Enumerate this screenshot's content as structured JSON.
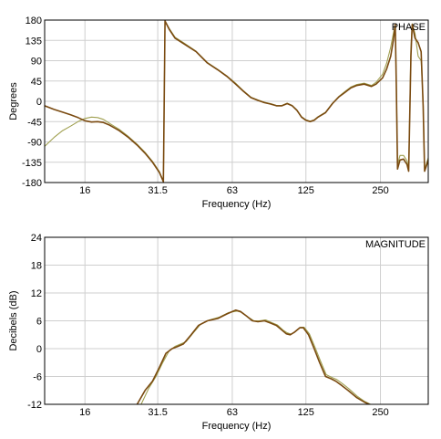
{
  "chart_data": [
    {
      "type": "line",
      "title": "PHASE",
      "xlabel": "Frequency (Hz)",
      "ylabel": "Degrees",
      "x_scale": "log",
      "xlim": [
        11,
        390
      ],
      "ylim": [
        -180,
        180
      ],
      "grid": true,
      "x_ticks": [
        16,
        31.5,
        63,
        125,
        250
      ],
      "x_tick_labels": [
        "16",
        "31.5",
        "63",
        "125",
        "250"
      ],
      "y_ticks": [
        180,
        135,
        90,
        45,
        0,
        -45,
        -90,
        -135,
        -180
      ],
      "y_tick_labels": [
        "180",
        "135",
        "90",
        "45",
        "0",
        "-45",
        "-90",
        "-135",
        "-180"
      ],
      "colors": [
        "#7a4a10",
        "#a0a050"
      ],
      "series": [
        {
          "values": [
            [
              11,
              -10
            ],
            [
              12,
              -18
            ],
            [
              13,
              -24
            ],
            [
              14,
              -30
            ],
            [
              15,
              -36
            ],
            [
              16,
              -43
            ],
            [
              17,
              -46
            ],
            [
              18,
              -45
            ],
            [
              19,
              -47
            ],
            [
              20,
              -52
            ],
            [
              22,
              -65
            ],
            [
              24,
              -80
            ],
            [
              26,
              -97
            ],
            [
              28,
              -115
            ],
            [
              30,
              -135
            ],
            [
              32,
              -158
            ],
            [
              33.2,
              -178
            ],
            [
              33.7,
              178
            ],
            [
              35,
              160
            ],
            [
              37,
              140
            ],
            [
              40,
              128
            ],
            [
              45,
              110
            ],
            [
              50,
              85
            ],
            [
              55,
              70
            ],
            [
              60,
              55
            ],
            [
              65,
              38
            ],
            [
              70,
              22
            ],
            [
              75,
              8
            ],
            [
              80,
              2
            ],
            [
              85,
              -3
            ],
            [
              90,
              -6
            ],
            [
              95,
              -10
            ],
            [
              100,
              -10
            ],
            [
              105,
              -5
            ],
            [
              110,
              -10
            ],
            [
              115,
              -20
            ],
            [
              120,
              -35
            ],
            [
              125,
              -42
            ],
            [
              130,
              -45
            ],
            [
              135,
              -42
            ],
            [
              140,
              -35
            ],
            [
              150,
              -25
            ],
            [
              160,
              -5
            ],
            [
              170,
              10
            ],
            [
              180,
              20
            ],
            [
              190,
              30
            ],
            [
              200,
              35
            ],
            [
              215,
              38
            ],
            [
              230,
              33
            ],
            [
              240,
              38
            ],
            [
              255,
              52
            ],
            [
              265,
              72
            ],
            [
              275,
              100
            ],
            [
              282,
              135
            ],
            [
              287,
              170
            ],
            [
              290,
              30
            ],
            [
              293,
              -150
            ],
            [
              300,
              -130
            ],
            [
              310,
              -128
            ],
            [
              320,
              -140
            ],
            [
              325,
              -155
            ],
            [
              332,
              100
            ],
            [
              336,
              170
            ],
            [
              345,
              140
            ],
            [
              355,
              130
            ],
            [
              365,
              110
            ],
            [
              372,
              -10
            ],
            [
              377,
              -155
            ],
            [
              385,
              -140
            ],
            [
              390,
              -130
            ]
          ]
        },
        {
          "values": [
            [
              11,
              -100
            ],
            [
              12,
              -80
            ],
            [
              13,
              -65
            ],
            [
              14,
              -55
            ],
            [
              15,
              -45
            ],
            [
              16,
              -38
            ],
            [
              17,
              -35
            ],
            [
              18,
              -36
            ],
            [
              19,
              -40
            ],
            [
              20,
              -48
            ],
            [
              22,
              -62
            ],
            [
              24,
              -78
            ],
            [
              26,
              -95
            ],
            [
              28,
              -113
            ],
            [
              30,
              -133
            ],
            [
              32,
              -156
            ],
            [
              33.2,
              -178
            ],
            [
              33.7,
              178
            ],
            [
              35,
              162
            ],
            [
              37,
              142
            ],
            [
              40,
              130
            ],
            [
              45,
              111
            ],
            [
              50,
              86
            ],
            [
              55,
              71
            ],
            [
              60,
              56
            ],
            [
              65,
              40
            ],
            [
              70,
              23
            ],
            [
              75,
              9
            ],
            [
              80,
              3
            ],
            [
              85,
              -2
            ],
            [
              90,
              -5
            ],
            [
              95,
              -9
            ],
            [
              100,
              -9
            ],
            [
              105,
              -4
            ],
            [
              110,
              -9
            ],
            [
              115,
              -19
            ],
            [
              120,
              -34
            ],
            [
              125,
              -41
            ],
            [
              130,
              -44
            ],
            [
              135,
              -41
            ],
            [
              140,
              -34
            ],
            [
              150,
              -24
            ],
            [
              160,
              -4
            ],
            [
              170,
              11
            ],
            [
              180,
              22
            ],
            [
              190,
              32
            ],
            [
              200,
              37
            ],
            [
              215,
              40
            ],
            [
              230,
              35
            ],
            [
              240,
              42
            ],
            [
              255,
              60
            ],
            [
              265,
              85
            ],
            [
              275,
              120
            ],
            [
              282,
              150
            ],
            [
              287,
              172
            ],
            [
              290,
              40
            ],
            [
              293,
              -140
            ],
            [
              300,
              -120
            ],
            [
              310,
              -120
            ],
            [
              320,
              -132
            ],
            [
              325,
              -150
            ],
            [
              332,
              120
            ],
            [
              336,
              172
            ],
            [
              345,
              150
            ],
            [
              355,
              100
            ],
            [
              365,
              90
            ],
            [
              372,
              0
            ],
            [
              377,
              -150
            ],
            [
              385,
              -135
            ],
            [
              390,
              -125
            ]
          ]
        }
      ]
    },
    {
      "type": "line",
      "title": "MAGNITUDE",
      "xlabel": "Frequency (Hz)",
      "ylabel": "Decibels (dB)",
      "x_scale": "log",
      "xlim": [
        11,
        390
      ],
      "ylim": [
        -12,
        24
      ],
      "grid": true,
      "x_ticks": [
        16,
        31.5,
        63,
        125,
        250
      ],
      "x_tick_labels": [
        "16",
        "31.5",
        "63",
        "125",
        "250"
      ],
      "y_ticks": [
        24,
        18,
        12,
        6,
        0,
        -6,
        -12
      ],
      "y_tick_labels": [
        "24",
        "18",
        "12",
        "6",
        "0",
        "-6",
        "-12"
      ],
      "colors": [
        "#7a4a10",
        "#a0a050"
      ],
      "series": [
        {
          "values": [
            [
              26,
              -12
            ],
            [
              28,
              -9
            ],
            [
              30,
              -7
            ],
            [
              32,
              -4
            ],
            [
              34,
              -1
            ],
            [
              36,
              0
            ],
            [
              38,
              0.5
            ],
            [
              40,
              1
            ],
            [
              43,
              3
            ],
            [
              46,
              5
            ],
            [
              50,
              6
            ],
            [
              55,
              6.5
            ],
            [
              60,
              7.5
            ],
            [
              65,
              8.3
            ],
            [
              68,
              8
            ],
            [
              72,
              7
            ],
            [
              76,
              6
            ],
            [
              80,
              5.8
            ],
            [
              85,
              6
            ],
            [
              90,
              5.5
            ],
            [
              95,
              5
            ],
            [
              100,
              4
            ],
            [
              104,
              3.2
            ],
            [
              108,
              3
            ],
            [
              112,
              3.5
            ],
            [
              118,
              4.5
            ],
            [
              122,
              4.5
            ],
            [
              128,
              3
            ],
            [
              135,
              0
            ],
            [
              142,
              -3
            ],
            [
              150,
              -6
            ],
            [
              158,
              -6.5
            ],
            [
              165,
              -7
            ],
            [
              175,
              -8
            ],
            [
              185,
              -9
            ],
            [
              200,
              -10.5
            ],
            [
              215,
              -11.5
            ],
            [
              225,
              -12
            ]
          ]
        },
        {
          "values": [
            [
              27,
              -12
            ],
            [
              29,
              -8.5
            ],
            [
              31,
              -6
            ],
            [
              33,
              -3
            ],
            [
              35,
              -0.5
            ],
            [
              37,
              0.5
            ],
            [
              39,
              1
            ],
            [
              41,
              1.5
            ],
            [
              44,
              3.5
            ],
            [
              47,
              5.3
            ],
            [
              51,
              6.2
            ],
            [
              56,
              6.8
            ],
            [
              61,
              7.8
            ],
            [
              66,
              8.1
            ],
            [
              69,
              7.8
            ],
            [
              73,
              6.8
            ],
            [
              77,
              6
            ],
            [
              81,
              6
            ],
            [
              86,
              6.2
            ],
            [
              91,
              5.6
            ],
            [
              96,
              5.1
            ],
            [
              101,
              4
            ],
            [
              105,
              3.4
            ],
            [
              109,
              3.1
            ],
            [
              113,
              3.6
            ],
            [
              119,
              4.6
            ],
            [
              123,
              4.6
            ],
            [
              129,
              3.2
            ],
            [
              136,
              0.3
            ],
            [
              143,
              -2.6
            ],
            [
              151,
              -5.6
            ],
            [
              159,
              -6.2
            ],
            [
              166,
              -6.6
            ],
            [
              176,
              -7.6
            ],
            [
              186,
              -8.6
            ],
            [
              201,
              -10.2
            ],
            [
              216,
              -11.4
            ],
            [
              228,
              -12
            ]
          ]
        }
      ]
    }
  ]
}
